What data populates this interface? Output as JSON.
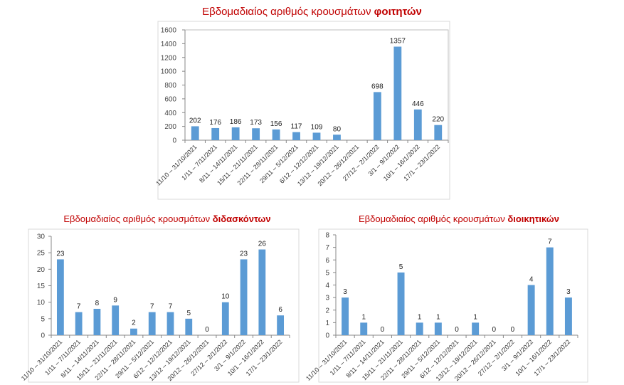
{
  "chart_data": [
    {
      "type": "bar",
      "title_prefix": "Εβδομαδιαίος αριθμός κρουσμάτων ",
      "title_bold": "φοιτητών",
      "categories": [
        "11/10 – 31/10/2021",
        "1/11 – 7/11/2021",
        "8/11 – 14/11/2021",
        "15/11 – 21/11/2021",
        "22/11 – 28/11/2021",
        "29/11 – 5/12/2021",
        "6/12 – 12/12/2021",
        "13/12 – 19/12/2021",
        "20/12 – 26/12/2021",
        "27/12 – 2/1/2022",
        "3/1 – 9/1/2022",
        "10/1 – 16/1/2022",
        "17/1 – 23/1/2022"
      ],
      "values": [
        202,
        176,
        186,
        173,
        156,
        117,
        109,
        80,
        null,
        698,
        1357,
        446,
        220
      ],
      "ylim": [
        0,
        1600
      ],
      "yticks": [
        0,
        200,
        400,
        600,
        800,
        1000,
        1200,
        1400,
        1600
      ],
      "bar_color": "#5b9bd5",
      "grid": false
    },
    {
      "type": "bar",
      "title_prefix": "Εβδομαδιαίος αριθμός κρουσμάτων ",
      "title_bold": "διδασκόντων",
      "categories": [
        "11/10 – 31/10/2021",
        "1/11 – 7/11/2021",
        "8/11 – 14/11/2021",
        "15/11 – 21/11/2021",
        "22/11 – 28/11/2021",
        "29/11 – 5/12/2021",
        "6/12 – 12/12/2021",
        "13/12 – 19/12/2021",
        "20/12 – 26/12/2021",
        "27/12 – 2/1/2022",
        "3/1 – 9/1/2022",
        "10/1 – 16/1/2022",
        "17/1 – 23/1/2022"
      ],
      "values": [
        23,
        7,
        8,
        9,
        2,
        7,
        7,
        5,
        0,
        10,
        23,
        26,
        6
      ],
      "ylim": [
        0,
        30
      ],
      "yticks": [
        0,
        5,
        10,
        15,
        20,
        25,
        30
      ],
      "bar_color": "#5b9bd5",
      "grid": false
    },
    {
      "type": "bar",
      "title_prefix": "Εβδομαδιαίος αριθμός κρουσμάτων ",
      "title_bold": "διοικητικών",
      "categories": [
        "11/10 – 31/10/2021",
        "1/11 – 7/11/2021",
        "8/11 – 14/11/2021",
        "15/11 – 21/11/2021",
        "22/11 – 28/11/2021",
        "29/11 – 5/12/2021",
        "6/12 – 12/12/2021",
        "13/12 – 19/12/2021",
        "20/12 – 26/12/2021",
        "27/12 – 2/1/2022",
        "3/1 – 9/1/2022",
        "10/1 – 16/1/2022",
        "17/1 – 23/1/2022"
      ],
      "values": [
        3,
        1,
        0,
        5,
        1,
        1,
        0,
        1,
        0,
        0,
        4,
        7,
        3
      ],
      "ylim": [
        0,
        8
      ],
      "yticks": [
        0,
        1,
        2,
        3,
        4,
        5,
        6,
        7,
        8
      ],
      "bar_color": "#5b9bd5",
      "grid": false
    }
  ]
}
